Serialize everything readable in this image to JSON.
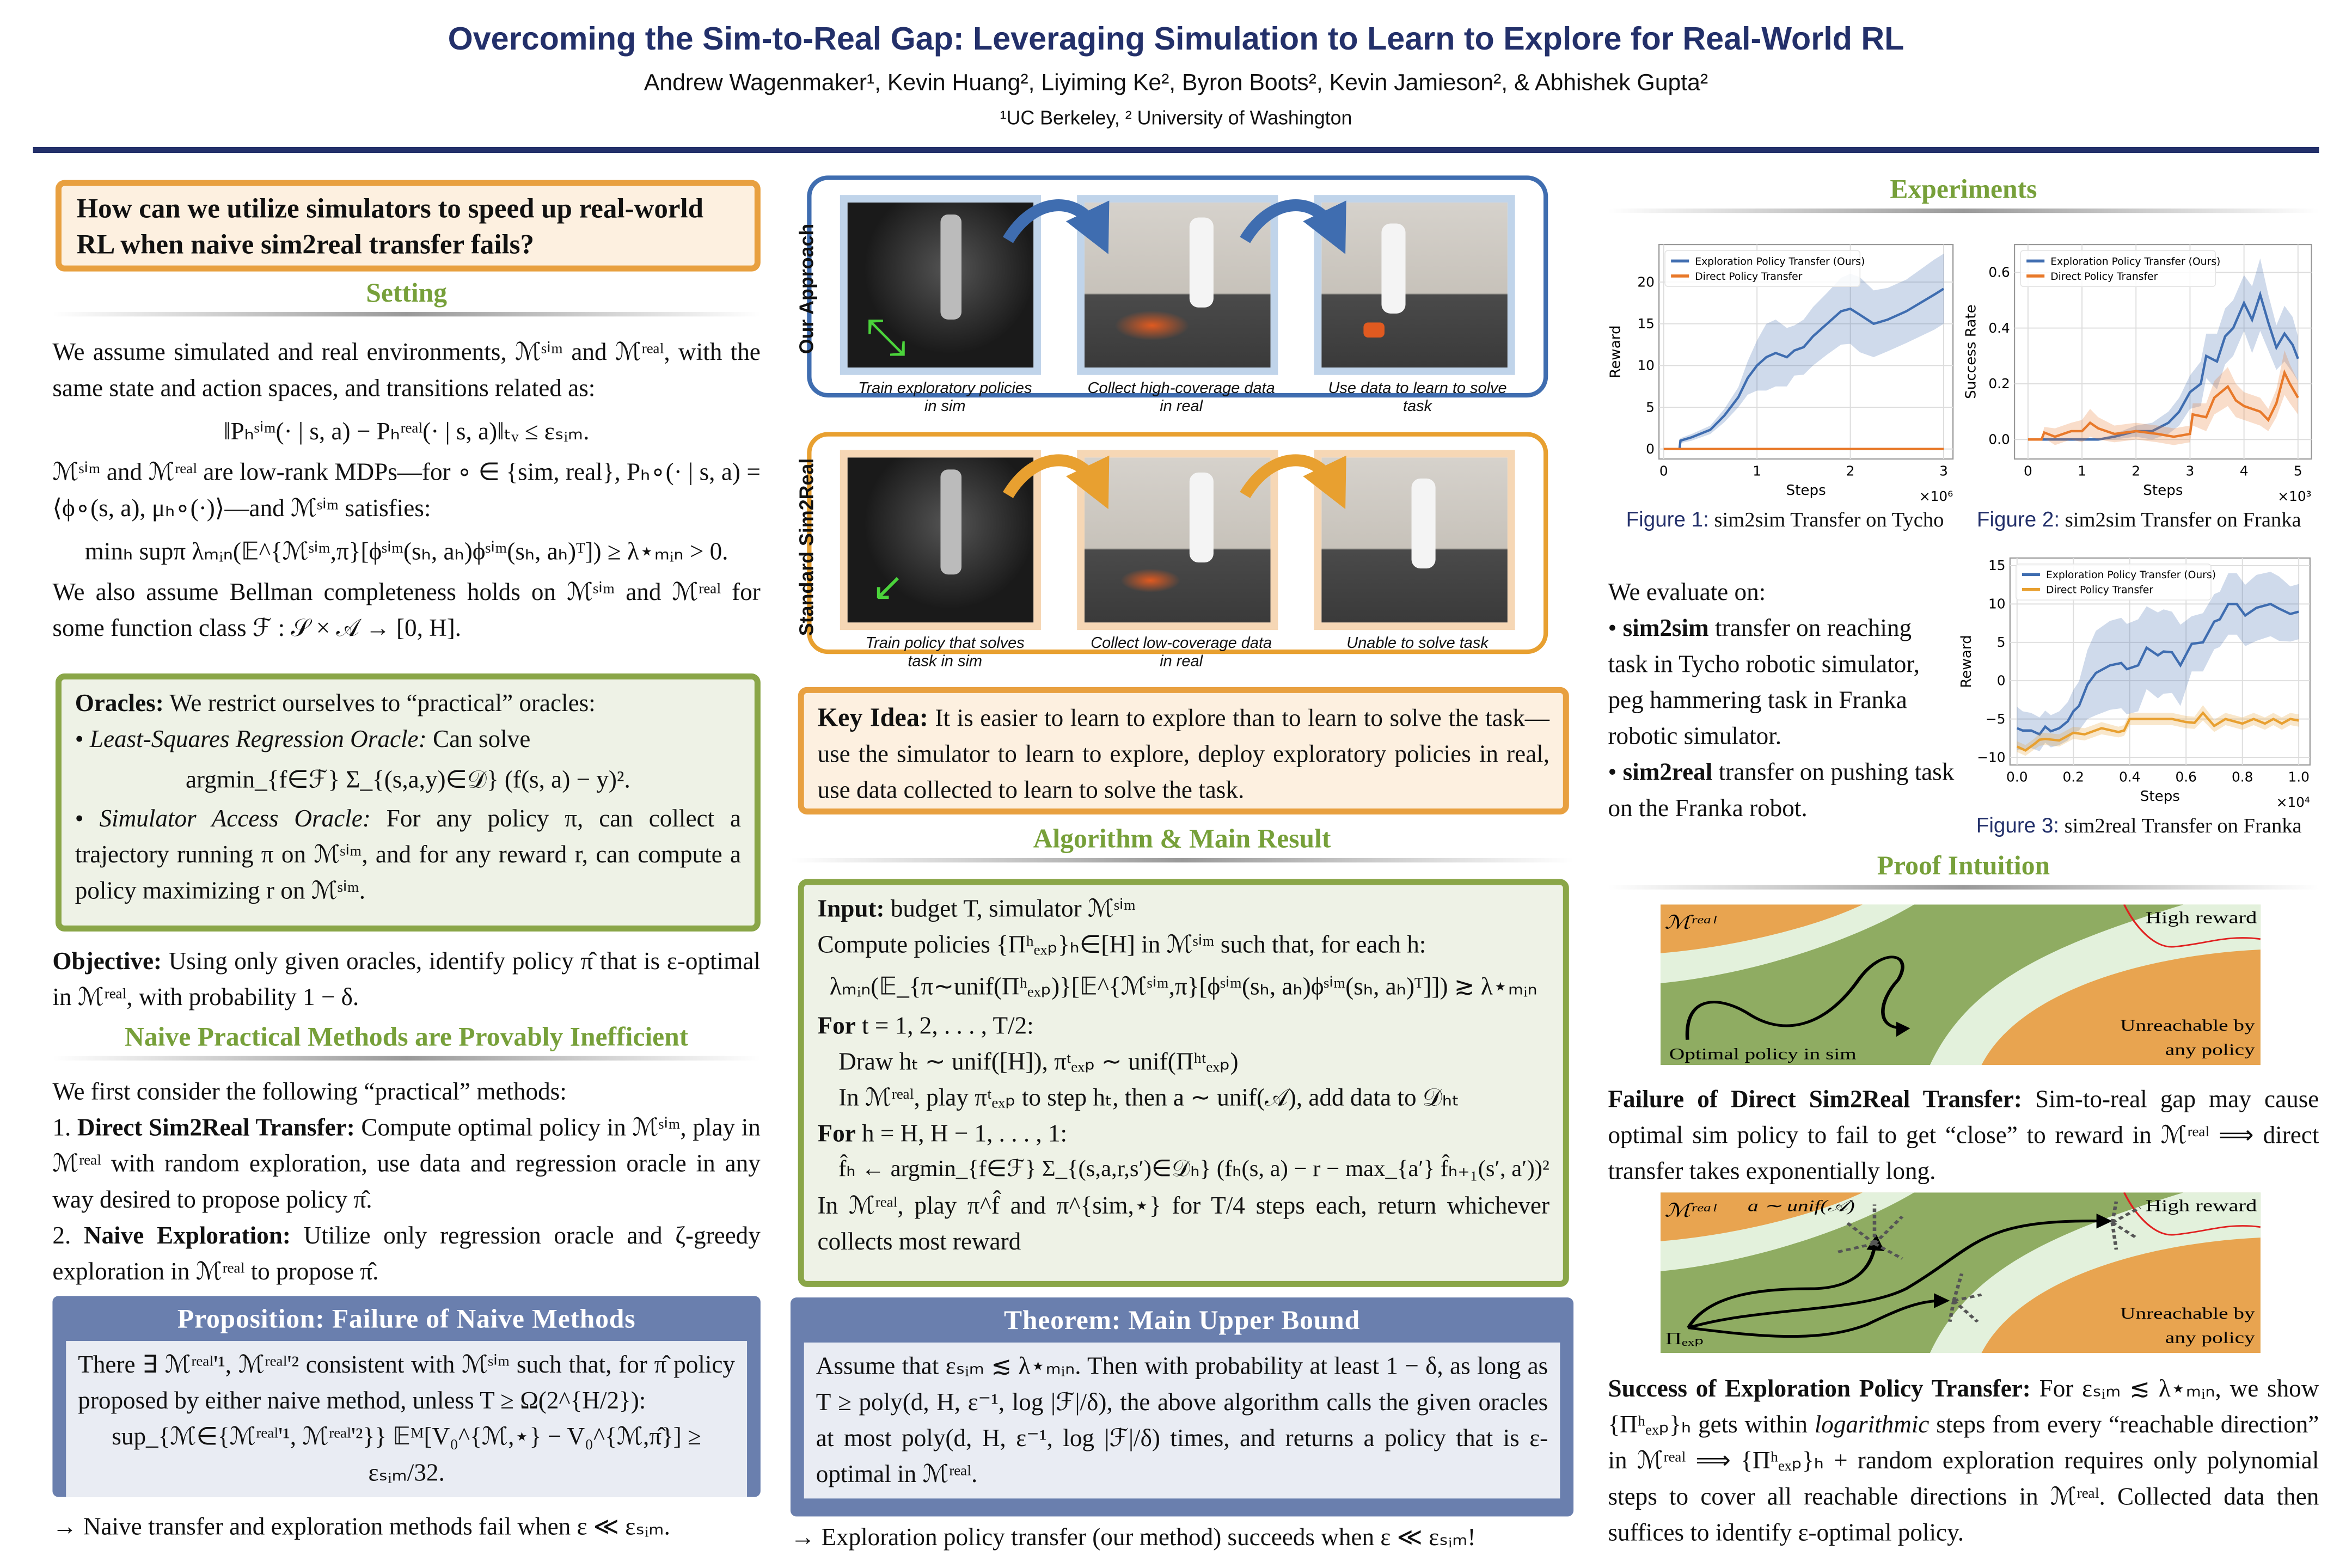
{
  "header": {
    "title": "Overcoming the Sim-to-Real Gap: Leveraging Simulation to Learn to Explore for Real-World RL",
    "authors": "Andrew Wagenmaker¹, Kevin Huang², Liyiming Ke², Byron Boots², Kevin Jamieson², & Abhishek Gupta²",
    "affiliations": "¹UC Berkeley,    ² University of Washington"
  },
  "col1": {
    "question": "How can we utilize simulators to speed up real-world RL when naive sim2real transfer fails?",
    "setting_title": "Setting",
    "setting_p1": "We assume simulated and real environments, ℳˢⁱᵐ and ℳʳᵉᵃˡ, with the same state and action spaces, and transitions related as:",
    "setting_eq1": "‖Pₕˢⁱᵐ(· | s, a) − Pₕʳᵉᵃˡ(· | s, a)‖ₜᵥ ≤ εₛᵢₘ.",
    "setting_p2": "ℳˢⁱᵐ and ℳʳᵉᵃˡ are low-rank MDPs—for ∘ ∈ {sim, real}, Pₕ∘(· | s, a) = ⟨ϕ∘(s, a), μₕ∘(·)⟩—and ℳˢⁱᵐ satisfies:",
    "setting_eq2": "minₕ supπ λₘᵢₙ(𝔼^{ℳˢⁱᵐ,π}[ϕˢⁱᵐ(sₕ, aₕ)ϕˢⁱᵐ(sₕ, aₕ)ᵀ]) ≥ λ⋆ₘᵢₙ > 0.",
    "setting_p3": "We also assume Bellman completeness holds on ℳˢⁱᵐ and ℳʳᵉᵃˡ for some function class ℱ : 𝒮 × 𝒜 → [0, H].",
    "oracles_label": "Oracles:",
    "oracles_intro": " We restrict ourselves to “practical” oracles:",
    "oracle1_name": "Least-Squares Regression Oracle:",
    "oracle1_text": " Can solve",
    "oracle1_eq": "argmin_{f∈ℱ} Σ_{(s,a,y)∈𝒟} (f(s, a) − y)².",
    "oracle2_name": "Simulator Access Oracle:",
    "oracle2_text": " For any policy π, can collect a trajectory running π on ℳˢⁱᵐ, and for any reward r, can compute a policy maximizing r on ℳˢⁱᵐ.",
    "objective_label": "Objective:",
    "objective_text": " Using only given oracles, identify policy π̂ that is ε-optimal in ℳʳᵉᵃˡ, with probability 1 − δ.",
    "naive_title": "Naive Practical Methods are Provably Inefficient",
    "naive_intro": "We first consider the following “practical” methods:",
    "m1_num": "1. ",
    "m1_name": "Direct Sim2Real Transfer:",
    "m1_text": " Compute optimal policy in ℳˢⁱᵐ, play in ℳʳᵉᵃˡ with random exploration, use data and regression oracle in any way desired to propose policy π̂.",
    "m2_num": "2. ",
    "m2_name": "Naive Exploration:",
    "m2_text": " Utilize only regression oracle and ζ-greedy exploration in ℳʳᵉᵃˡ to propose π̂.",
    "prop_title": "Proposition: Failure of Naive Methods",
    "prop_text": "There ∃ ℳʳᵉᵃˡ'¹, ℳʳᵉᵃˡ'² consistent with ℳˢⁱᵐ such that, for π̂ policy proposed by either naive method, unless T ≥ Ω(2^{H/2}):",
    "prop_eq": "sup_{ℳ∈{ℳʳᵉᵃˡ'¹, ℳʳᵉᵃˡ'²}} 𝔼ᴹ[V₀^{ℳ,⋆} − V₀^{ℳ,π̂}] ≥ εₛᵢₘ/32.",
    "conclusion": "→ Naive transfer and exploration methods fail when ε ≪ εₛᵢₘ."
  },
  "col2": {
    "approach_label": "Our Approach",
    "approach_captions": [
      "Train exploratory policies in sim",
      "Collect high-coverage data in real",
      "Use data to learn to solve task"
    ],
    "standard_label": "Standard Sim2Real",
    "standard_captions": [
      "Train policy that solves task in sim",
      "Collect low-coverage data in real",
      "Unable to solve task"
    ],
    "approach_color": "#3f6db0",
    "standard_color": "#e8a030",
    "key_label": "Key Idea:",
    "key_text": " It is easier to learn to explore than to learn to solve the task—use the simulator to learn to explore, deploy exploratory policies in real, use data collected to learn to solve the task.",
    "alg_title": "Algorithm & Main Result",
    "alg": {
      "input_label": "Input:",
      "input_text": " budget T, simulator ℳˢⁱᵐ",
      "compute": "Compute policies {Πʰₑₓₚ}ₕ∈[H] in ℳˢⁱᵐ such that, for each h:",
      "compute_eq": "λₘᵢₙ(𝔼_{π∼unif(Πʰₑₓₚ)}[𝔼^{ℳˢⁱᵐ,π}[ϕˢⁱᵐ(sₕ, aₕ)ϕˢⁱᵐ(sₕ, aₕ)ᵀ]]) ≳ λ⋆ₘᵢₙ",
      "for1_label": "For",
      "for1_text": " t = 1, 2, . . . , T/2:",
      "draw": "Draw hₜ ∼ unif([H]), πᵗₑₓₚ ∼ unif(Πʰᵗₑₓₚ)",
      "play": "In ℳʳᵉᵃˡ, play πᵗₑₓₚ to step hₜ, then a ∼ unif(𝒜), add data to 𝒟ₕₜ",
      "for2_label": "For",
      "for2_text": " h = H, H − 1, . . . , 1:",
      "fit": "f̂ₕ ← argmin_{f∈ℱ} Σ_{(s,a,r,s′)∈𝒟ₕ} (fₕ(s, a) − r − max_{a′} f̂ₕ₊₁(s′, a′))²",
      "final": "In ℳʳᵉᵃˡ, play π^f̂ and π^{sim,⋆} for T/4 steps each, return whichever collects most reward"
    },
    "thm_title": "Theorem: Main Upper Bound",
    "thm_text": "Assume that εₛᵢₘ ≲ λ⋆ₘᵢₙ. Then with probability at least 1 − δ, as long as T ≥ poly(d, H, ε⁻¹, log |ℱ|/δ), the above algorithm calls the given oracles at most poly(d, H, ε⁻¹, log |ℱ|/δ) times, and returns a policy that is ε-optimal in ℳʳᵉᵃˡ.",
    "conclusion": "→ Exploration policy transfer (our method) succeeds when ε ≪ εₛᵢₘ!"
  },
  "col3": {
    "exp_title": "Experiments",
    "fig1_num": "Figure 1:",
    "fig1_cap": " sim2sim Transfer on Tycho",
    "fig2_num": "Figure 2:",
    "fig2_cap": " sim2sim Transfer on Franka",
    "fig3_num": "Figure 3:",
    "fig3_cap": " sim2real Transfer on Franka",
    "eval_intro": "We evaluate on:",
    "eval1_bullet": "• ",
    "eval1_name": "sim2sim",
    "eval1_text": " transfer on reaching task in Tycho robotic simulator, peg hammering task in Franka robotic simulator.",
    "eval2_bullet": "• ",
    "eval2_name": "sim2real",
    "eval2_text": " transfer on pushing task on the Franka robot.",
    "proof_title": "Proof Intuition",
    "diag": {
      "m_real": "ℳʳᵉᵃˡ",
      "high_reward": "High reward",
      "optimal": "Optimal policy in sim",
      "unreachable1": "Unreachable by",
      "unreachable2": "any policy",
      "random": "a ∼ unif(𝒜)",
      "pi_exp": "Πₑₓₚ",
      "orange": "#e8a450",
      "green": "#8fac62",
      "pale": "#e3f1dc",
      "red": "#e02020"
    },
    "failure_label": "Failure of Direct Sim2Real Transfer:",
    "failure_text": " Sim-to-real gap may cause optimal sim policy to fail to get “close” to reward in ℳʳᵉᵃˡ ⟹ direct transfer takes exponentially long.",
    "success_label": "Success of Exploration Policy Transfer:",
    "success_text1": " For εₛᵢₘ ≲ λ⋆ₘᵢₙ, we show {Πʰₑₓₚ}ₕ gets within ",
    "success_italic": "logarithmic",
    "success_text2": " steps from every “reachable direction” in ℳʳᵉᵃˡ ⟹ {Πʰₑₓₚ}ₕ + random exploration requires only polynomial steps to cover all reachable directions in ℳʳᵉᵃˡ. Collected data then suffices to identify ε-optimal policy."
  },
  "chart_data": [
    {
      "type": "line",
      "xlabel": "Steps",
      "ylabel": "Reward",
      "x_multiplier": "×10⁶",
      "xlim": [
        -0.05,
        3.1
      ],
      "ylim": [
        -1.2,
        24.5
      ],
      "xticks": [
        0,
        1,
        2,
        3
      ],
      "yticks": [
        0,
        5,
        10,
        15,
        20
      ],
      "grid": true,
      "legend": "top-left",
      "series": [
        {
          "name": "Exploration Policy Transfer (Ours)",
          "color": "#3f6db0",
          "x": [
            0.17,
            0.18,
            0.3,
            0.5,
            0.65,
            0.8,
            0.9,
            1.0,
            1.1,
            1.2,
            1.32,
            1.4,
            1.5,
            1.6,
            1.75,
            1.9,
            2.0,
            2.1,
            2.25,
            2.4,
            2.6,
            2.75,
            2.9,
            3.0
          ],
          "y": [
            0,
            1,
            1.4,
            2.3,
            4,
            6.2,
            8.5,
            10,
            11,
            11.5,
            11,
            11.8,
            12.2,
            13.5,
            15,
            16.5,
            16.8,
            16.1,
            15,
            15.5,
            16.5,
            17.5,
            18.5,
            19.2
          ],
          "band": [
            0,
            0.3,
            0.4,
            0.5,
            0.8,
            1.2,
            2,
            3,
            4,
            4,
            3.5,
            3,
            3.3,
            3.5,
            3.7,
            4,
            4.2,
            4.5,
            4,
            3.8,
            3.8,
            4,
            4.2,
            4.2
          ]
        },
        {
          "name": "Direct Policy Transfer",
          "color": "#e8792a",
          "x": [
            0,
            3.0
          ],
          "y": [
            0,
            0
          ],
          "band": [
            0,
            0
          ]
        }
      ]
    },
    {
      "type": "line",
      "xlabel": "Steps",
      "ylabel": "Success Rate",
      "x_multiplier": "×10³",
      "xlim": [
        -0.25,
        5.25
      ],
      "ylim": [
        -0.07,
        0.7
      ],
      "xticks": [
        0,
        1,
        2,
        3,
        4,
        5
      ],
      "yticks": [
        0.0,
        0.2,
        0.4,
        0.6
      ],
      "grid": true,
      "legend": "top-left",
      "series": [
        {
          "name": "Exploration Policy Transfer (Ours)",
          "color": "#3f6db0",
          "x": [
            0,
            1.3,
            1.6,
            2.0,
            2.3,
            2.6,
            2.8,
            3.0,
            3.2,
            3.3,
            3.5,
            3.65,
            3.8,
            4.0,
            4.15,
            4.3,
            4.45,
            4.6,
            4.75,
            4.9,
            5.0
          ],
          "y": [
            0,
            0,
            0.01,
            0.03,
            0.03,
            0.06,
            0.1,
            0.17,
            0.2,
            0.3,
            0.28,
            0.37,
            0.4,
            0.49,
            0.43,
            0.52,
            0.42,
            0.33,
            0.38,
            0.34,
            0.29
          ],
          "band": [
            0,
            0,
            0.01,
            0.02,
            0.03,
            0.04,
            0.05,
            0.06,
            0.08,
            0.08,
            0.1,
            0.1,
            0.1,
            0.1,
            0.12,
            0.13,
            0.1,
            0.08,
            0.1,
            0.1,
            0.08
          ]
        },
        {
          "name": "Direct Policy Transfer",
          "color": "#e8792a",
          "x": [
            0,
            0.25,
            0.3,
            0.5,
            0.8,
            1.0,
            1.15,
            1.3,
            1.6,
            2.0,
            2.4,
            2.7,
            3.0,
            3.05,
            3.3,
            3.45,
            3.7,
            3.85,
            4.0,
            4.3,
            4.45,
            4.6,
            4.75,
            4.85,
            5.0
          ],
          "y": [
            0,
            0,
            0.025,
            0.01,
            0.03,
            0.03,
            0.06,
            0.04,
            0.02,
            0.03,
            0.02,
            0.01,
            0.02,
            0.09,
            0.08,
            0.15,
            0.19,
            0.14,
            0.12,
            0.1,
            0.07,
            0.13,
            0.24,
            0.2,
            0.15
          ],
          "band": [
            0,
            0,
            0.02,
            0.03,
            0.03,
            0.04,
            0.05,
            0.04,
            0.03,
            0.03,
            0.03,
            0.03,
            0.03,
            0.04,
            0.05,
            0.06,
            0.07,
            0.06,
            0.05,
            0.05,
            0.04,
            0.05,
            0.08,
            0.07,
            0.06
          ]
        }
      ]
    },
    {
      "type": "line",
      "xlabel": "Steps",
      "ylabel": "Reward",
      "x_multiplier": "×10⁴",
      "xlim": [
        -0.025,
        1.04
      ],
      "ylim": [
        -11,
        16
      ],
      "xticks": [
        0.0,
        0.2,
        0.4,
        0.6,
        0.8,
        1.0
      ],
      "yticks": [
        -10,
        -5,
        0,
        5,
        10,
        15
      ],
      "grid": true,
      "legend": "top-left",
      "series": [
        {
          "name": "Exploration Policy Transfer (Ours)",
          "color": "#3f6db0",
          "x": [
            0,
            0.02,
            0.05,
            0.08,
            0.1,
            0.12,
            0.15,
            0.18,
            0.2,
            0.22,
            0.25,
            0.28,
            0.33,
            0.37,
            0.39,
            0.43,
            0.46,
            0.5,
            0.52,
            0.55,
            0.58,
            0.62,
            0.66,
            0.7,
            0.72,
            0.75,
            0.78,
            0.81,
            0.85,
            0.9,
            0.93,
            0.97,
            1.0
          ],
          "y": [
            -6.2,
            -6.5,
            -6.5,
            -7,
            -6,
            -6.6,
            -6.2,
            -5.3,
            -4,
            -3.3,
            -0.5,
            1,
            2,
            2.3,
            1.5,
            2,
            4.3,
            3.3,
            3.8,
            3.7,
            2,
            4.8,
            5,
            7.7,
            8,
            10,
            10,
            8.5,
            9.5,
            10,
            9.4,
            8.7,
            9
          ]
        },
        {
          "name": "Direct Policy Transfer",
          "color": "#e8a030",
          "x": [
            0,
            0.03,
            0.06,
            0.08,
            0.1,
            0.15,
            0.2,
            0.24,
            0.3,
            0.36,
            0.38,
            0.4,
            0.5,
            0.55,
            0.6,
            0.63,
            0.66,
            0.7,
            0.74,
            0.8,
            0.84,
            0.88,
            0.91,
            0.94,
            0.97,
            1.0
          ],
          "y": [
            -8.6,
            -9.1,
            -8.3,
            -7.7,
            -7.6,
            -7.8,
            -6.8,
            -7,
            -6.2,
            -6.7,
            -6.5,
            -5,
            -5,
            -5,
            -5.4,
            -5.5,
            -4.2,
            -5.9,
            -5,
            -5.6,
            -5,
            -5.6,
            -5,
            -5.6,
            -5,
            -5.2
          ]
        }
      ],
      "bands": [
        [
          2.8,
          2.5,
          2.3,
          2.2,
          2.1,
          2.1,
          2.2,
          2.5,
          2.8,
          3.2,
          4.5,
          5.5,
          5.8,
          5.9,
          5.9,
          6,
          5.4,
          5.6,
          5.5,
          5.3,
          5.3,
          3.6,
          3.8,
          3.6,
          3.6,
          4,
          4,
          4,
          4.3,
          4.2,
          4.2,
          3.6,
          3.6
        ],
        [
          0.7,
          0.7,
          0.7,
          0.8,
          0.8,
          0.8,
          0.8,
          0.8,
          0.8,
          0.7,
          0.7,
          0.8,
          0.8,
          0.8,
          0.8,
          0.8,
          1,
          0.8,
          0.8,
          0.8,
          0.8,
          0.8,
          0.8,
          0.8,
          0.8,
          0.8
        ]
      ]
    }
  ]
}
